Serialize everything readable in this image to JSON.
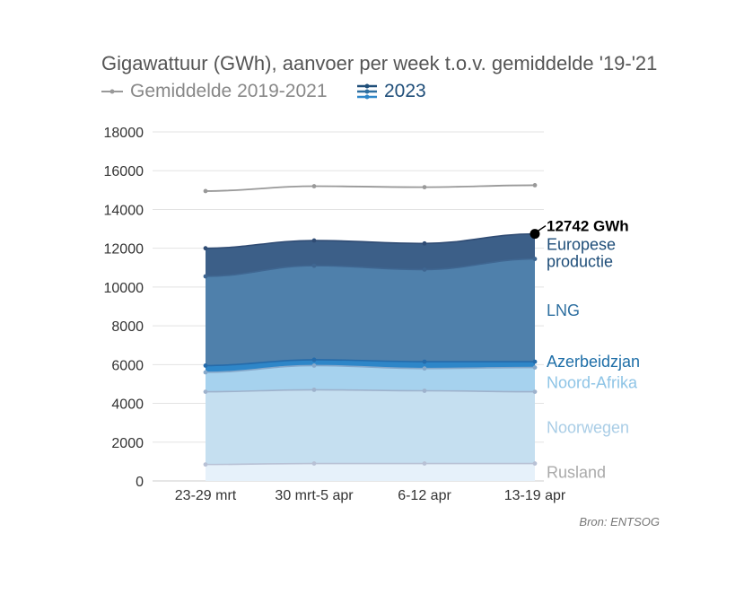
{
  "title": "Gigawattuur (GWh), aanvoer per week t.o.v. gemiddelde '19-'21",
  "legend": {
    "average_label": "Gemiddelde 2019-2021",
    "year_label": "2023"
  },
  "source": "Bron: ENTSOG",
  "end_label": "12742 GWh",
  "colors": {
    "average": "#999999",
    "Rusland": "#e6f1fa",
    "Noorwegen": "#c5dff0",
    "Noord-Afrika": "#a6d2ee",
    "Azerbeidzjan": "#2e86c8",
    "LNG": "#4f80ab",
    "Europese productie": "#3c5f88",
    "grid": "#e3e3e3",
    "axis_text": "#333333"
  },
  "chart_data": {
    "type": "area",
    "stacked": true,
    "categories": [
      "23-29 mrt",
      "30 mrt-5 apr",
      "6-12 apr",
      "13-19 apr"
    ],
    "ylim": [
      0,
      18000
    ],
    "yticks": [
      0,
      2000,
      4000,
      6000,
      8000,
      10000,
      12000,
      14000,
      16000,
      18000
    ],
    "grid": true,
    "legend_position": "top-left",
    "series": [
      {
        "name": "Rusland",
        "values": [
          850,
          900,
          900,
          900
        ],
        "label_lines": [
          "Rusland"
        ],
        "label_color": "#aaaaaa"
      },
      {
        "name": "Noorwegen",
        "values": [
          3750,
          3800,
          3750,
          3700
        ],
        "label_lines": [
          "Noorwegen"
        ],
        "label_color": "#a9cde6"
      },
      {
        "name": "Noord-Afrika",
        "values": [
          1000,
          1250,
          1150,
          1250
        ],
        "label_lines": [
          "Noord-Afrika"
        ],
        "label_color": "#8ec4e6"
      },
      {
        "name": "Azerbeidzjan",
        "values": [
          350,
          300,
          350,
          300
        ],
        "label_lines": [
          "Azerbeidzjan"
        ],
        "label_color": "#1f6fa8"
      },
      {
        "name": "LNG",
        "values": [
          4600,
          4850,
          4750,
          5300
        ],
        "label_lines": [
          "LNG"
        ],
        "label_color": "#2e6fa0"
      },
      {
        "name": "Europese productie",
        "values": [
          1450,
          1300,
          1350,
          1292
        ],
        "label_lines": [
          "Europese",
          "productie"
        ],
        "label_color": "#1f4e79"
      }
    ],
    "average": {
      "name": "Gemiddelde 2019-2021",
      "values": [
        14950,
        15200,
        15150,
        15250
      ]
    }
  }
}
